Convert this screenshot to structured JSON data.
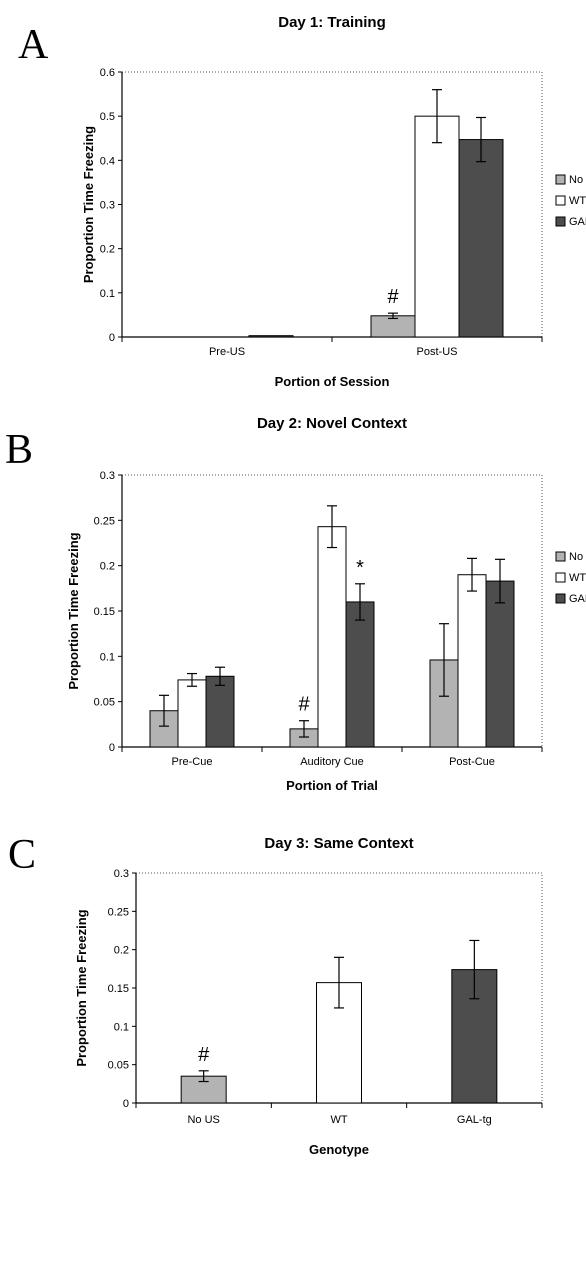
{
  "chart_data": [
    {
      "type": "bar",
      "panel_label": "A",
      "title": "Day 1: Training",
      "xlabel": "Portion of Session",
      "ylabel": "Proportion Time Freezing",
      "ylim": [
        0,
        0.6
      ],
      "yticks": [
        "0",
        "0.1",
        "0.2",
        "0.3",
        "0.4",
        "0.5",
        "0.6"
      ],
      "categories": [
        "Pre-US",
        "Post-US"
      ],
      "series": [
        {
          "name": "No US",
          "color": "#b3b3b3",
          "values": [
            0.0,
            0.048
          ],
          "errors": [
            0.0,
            0.006
          ]
        },
        {
          "name": "WT",
          "color": "#ffffff",
          "values": [
            0.0,
            0.5
          ],
          "errors": [
            0.0,
            0.06
          ]
        },
        {
          "name": "GAL-tg",
          "color": "#4d4d4d",
          "values": [
            0.003,
            0.447
          ],
          "errors": [
            0.0,
            0.05
          ]
        }
      ],
      "annotations": [
        {
          "text": "#",
          "category": 1,
          "series": 0
        }
      ],
      "legend": "right",
      "grid": false
    },
    {
      "type": "bar",
      "panel_label": "B",
      "title": "Day 2: Novel Context",
      "xlabel": "Portion of Trial",
      "ylabel": "Proportion Time Freezing",
      "ylim": [
        0,
        0.3
      ],
      "yticks": [
        "0",
        "0.05",
        "0.1",
        "0.15",
        "0.2",
        "0.25",
        "0.3"
      ],
      "categories": [
        "Pre-Cue",
        "Auditory Cue",
        "Post-Cue"
      ],
      "series": [
        {
          "name": "No US",
          "color": "#b3b3b3",
          "values": [
            0.04,
            0.02,
            0.096
          ],
          "errors": [
            0.017,
            0.009,
            0.04
          ]
        },
        {
          "name": "WT",
          "color": "#ffffff",
          "values": [
            0.074,
            0.243,
            0.19
          ],
          "errors": [
            0.007,
            0.023,
            0.018
          ]
        },
        {
          "name": "GAL-tg",
          "color": "#4d4d4d",
          "values": [
            0.078,
            0.16,
            0.183
          ],
          "errors": [
            0.01,
            0.02,
            0.024
          ]
        }
      ],
      "annotations": [
        {
          "text": "#",
          "category": 1,
          "series": 0
        },
        {
          "text": "*",
          "category": 1,
          "series": 2
        }
      ],
      "legend": "right",
      "grid": false
    },
    {
      "type": "bar",
      "panel_label": "C",
      "title": "Day 3: Same Context",
      "xlabel": "Genotype",
      "ylabel": "Proportion Time Freezing",
      "ylim": [
        0,
        0.3
      ],
      "yticks": [
        "0",
        "0.05",
        "0.1",
        "0.15",
        "0.2",
        "0.25",
        "0.3"
      ],
      "categories": [
        "No US",
        "WT",
        "GAL-tg"
      ],
      "series": [
        {
          "name": "",
          "colors": [
            "#b3b3b3",
            "#ffffff",
            "#4d4d4d"
          ],
          "values": [
            0.035,
            0.157,
            0.174
          ],
          "errors": [
            0.007,
            0.033,
            0.038
          ]
        }
      ],
      "annotations": [
        {
          "text": "#",
          "category": 0,
          "series": 0
        }
      ],
      "legend": "none",
      "grid": false
    }
  ]
}
